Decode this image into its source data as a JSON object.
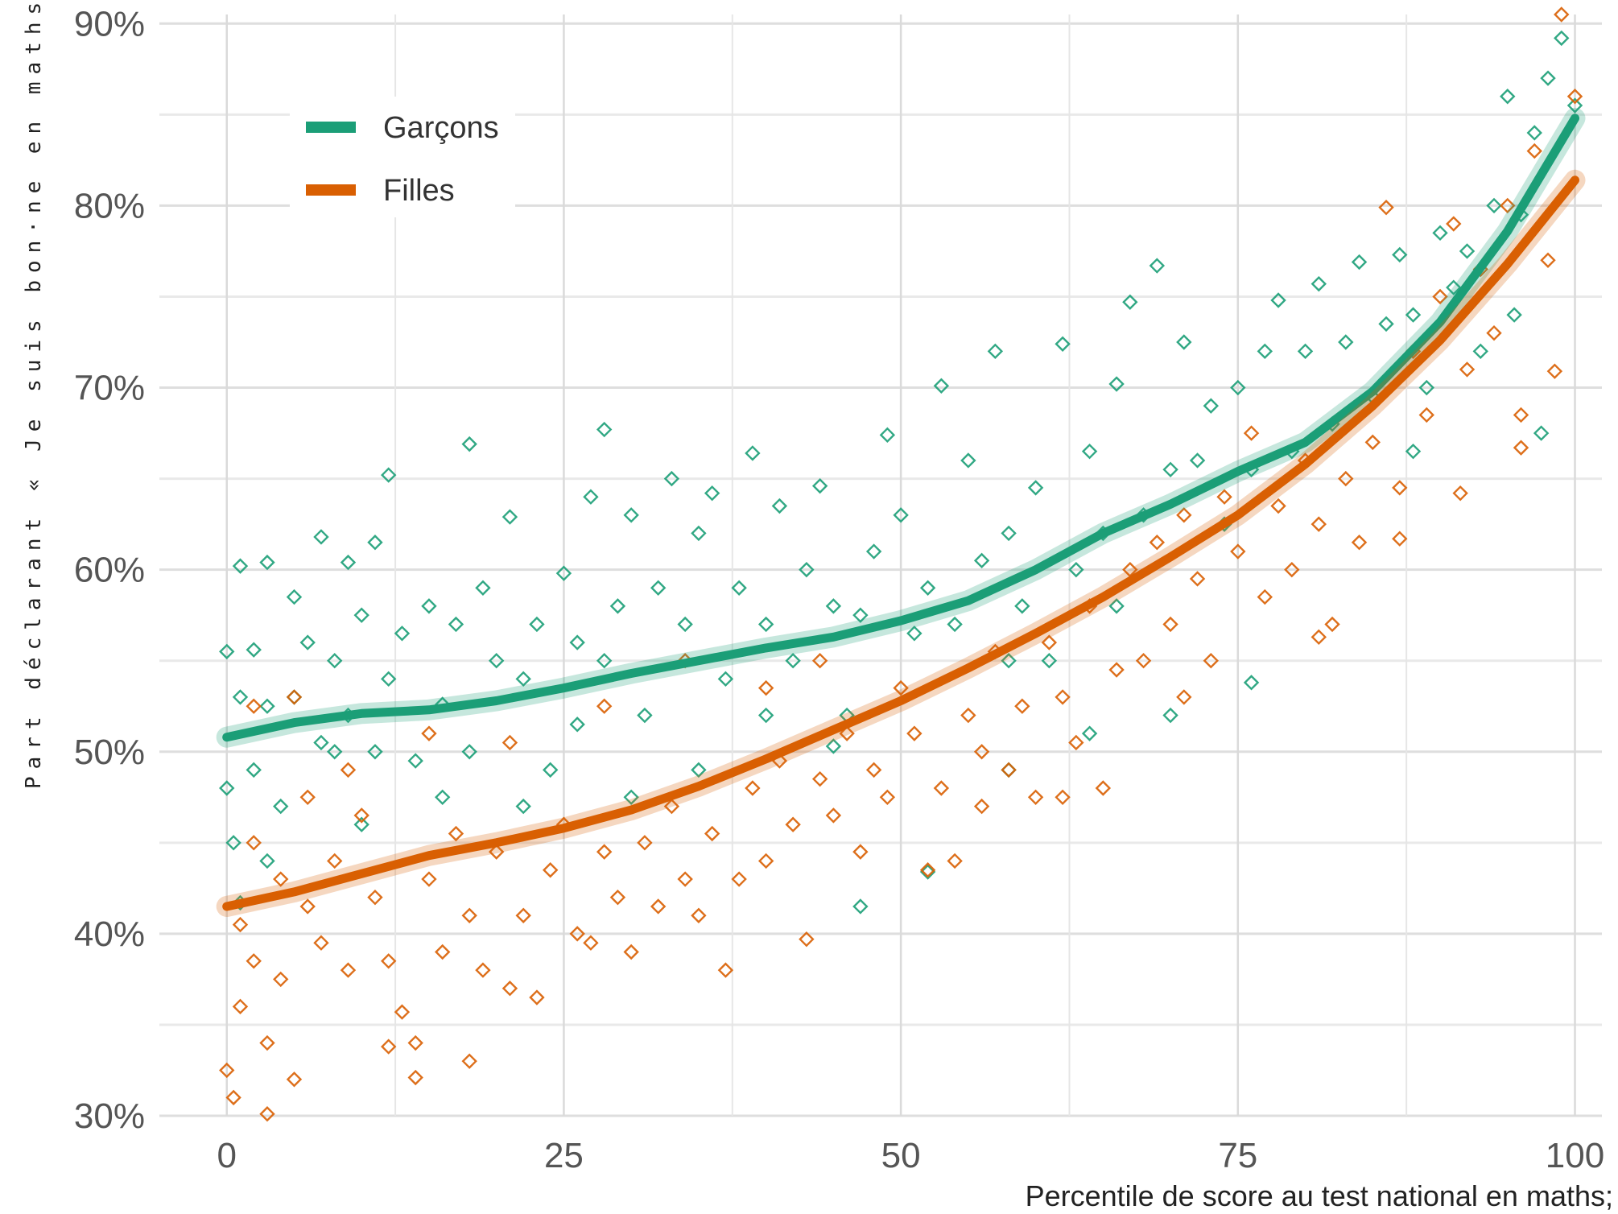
{
  "chart_data": {
    "type": "scatter",
    "title": "",
    "xlabel": "Percentile de score au test national en maths;",
    "ylabel": "Part déclarant « Je suis bon·ne en maths»",
    "xlim": [
      -5,
      102
    ],
    "ylim": [
      30,
      90.5
    ],
    "x_ticks": [
      0,
      25,
      50,
      75,
      100
    ],
    "x_tick_labels": [
      "0",
      "25",
      "50",
      "75",
      "100"
    ],
    "y_ticks": [
      30,
      40,
      50,
      60,
      70,
      80,
      90
    ],
    "y_tick_labels": [
      "30%",
      "40%",
      "50%",
      "60%",
      "70%",
      "80%",
      "90%"
    ],
    "grid": true,
    "legend_position": "top-left",
    "series": [
      {
        "name": "Garçons",
        "color": "#1b9e77",
        "trend": [
          [
            0,
            50.8
          ],
          [
            5,
            51.6
          ],
          [
            10,
            52.1
          ],
          [
            15,
            52.3
          ],
          [
            20,
            52.8
          ],
          [
            25,
            53.5
          ],
          [
            30,
            54.3
          ],
          [
            35,
            55.0
          ],
          [
            40,
            55.7
          ],
          [
            45,
            56.3
          ],
          [
            50,
            57.2
          ],
          [
            55,
            58.3
          ],
          [
            60,
            60.0
          ],
          [
            65,
            62.0
          ],
          [
            70,
            63.6
          ],
          [
            75,
            65.4
          ],
          [
            80,
            67.0
          ],
          [
            85,
            69.8
          ],
          [
            90,
            73.6
          ],
          [
            95,
            78.6
          ],
          [
            100,
            84.8
          ]
        ],
        "points": [
          [
            0,
            48
          ],
          [
            0,
            55.5
          ],
          [
            0.5,
            45
          ],
          [
            1,
            60.2
          ],
          [
            1,
            53
          ],
          [
            2,
            55.6
          ],
          [
            2,
            49
          ],
          [
            3,
            60.4
          ],
          [
            3,
            52.5
          ],
          [
            4,
            47
          ],
          [
            5,
            58.5
          ],
          [
            5,
            53
          ],
          [
            6,
            56
          ],
          [
            7,
            61.8
          ],
          [
            7,
            50.5
          ],
          [
            8,
            55
          ],
          [
            9,
            60.4
          ],
          [
            9,
            52
          ],
          [
            10,
            57.5
          ],
          [
            11,
            61.5
          ],
          [
            11,
            50
          ],
          [
            12,
            65.2
          ],
          [
            12,
            54
          ],
          [
            13,
            56.5
          ],
          [
            14,
            49.5
          ],
          [
            15,
            58
          ],
          [
            16,
            52.6
          ],
          [
            17,
            57
          ],
          [
            18,
            66.9
          ],
          [
            18,
            50
          ],
          [
            19,
            59
          ],
          [
            20,
            55
          ],
          [
            21,
            62.9
          ],
          [
            22,
            54
          ],
          [
            23,
            57
          ],
          [
            24,
            49
          ],
          [
            25,
            59.8
          ],
          [
            26,
            56
          ],
          [
            27,
            64
          ],
          [
            28,
            67.7
          ],
          [
            28,
            55
          ],
          [
            29,
            58
          ],
          [
            30,
            63
          ],
          [
            31,
            52
          ],
          [
            32,
            59
          ],
          [
            33,
            65
          ],
          [
            34,
            57
          ],
          [
            35,
            62
          ],
          [
            36,
            64.2
          ],
          [
            37,
            54
          ],
          [
            38,
            59
          ],
          [
            39,
            66.4
          ],
          [
            40,
            57
          ],
          [
            41,
            63.5
          ],
          [
            42,
            55
          ],
          [
            43,
            60
          ],
          [
            44,
            64.6
          ],
          [
            45,
            58
          ],
          [
            46,
            52
          ],
          [
            47,
            57.5
          ],
          [
            48,
            61
          ],
          [
            49,
            67.4
          ],
          [
            50,
            63
          ],
          [
            51,
            56.5
          ],
          [
            52,
            59
          ],
          [
            53,
            70.1
          ],
          [
            54,
            57
          ],
          [
            55,
            66
          ],
          [
            56,
            60.5
          ],
          [
            57,
            72
          ],
          [
            58,
            62
          ],
          [
            59,
            58
          ],
          [
            60,
            64.5
          ],
          [
            61,
            55
          ],
          [
            62,
            72.4
          ],
          [
            63,
            60
          ],
          [
            64,
            66.5
          ],
          [
            65,
            62
          ],
          [
            66,
            70.2
          ],
          [
            67,
            74.7
          ],
          [
            68,
            63
          ],
          [
            69,
            76.7
          ],
          [
            70,
            65.5
          ],
          [
            71,
            72.5
          ],
          [
            72,
            66
          ],
          [
            73,
            69
          ],
          [
            74,
            62.5
          ],
          [
            75,
            70
          ],
          [
            76,
            65.5
          ],
          [
            77,
            72
          ],
          [
            78,
            74.8
          ],
          [
            79,
            66.5
          ],
          [
            80,
            72
          ],
          [
            81,
            75.7
          ],
          [
            82,
            68
          ],
          [
            83,
            72.5
          ],
          [
            84,
            76.9
          ],
          [
            85,
            69.5
          ],
          [
            86,
            73.5
          ],
          [
            87,
            77.3
          ],
          [
            88,
            74
          ],
          [
            89,
            70
          ],
          [
            90,
            78.5
          ],
          [
            91,
            75.5
          ],
          [
            92,
            77.5
          ],
          [
            93,
            72
          ],
          [
            94,
            80
          ],
          [
            95,
            86
          ],
          [
            96,
            79.5
          ],
          [
            97,
            84
          ],
          [
            98,
            87
          ],
          [
            99,
            89.2
          ],
          [
            100,
            85.5
          ],
          [
            95.5,
            74
          ],
          [
            97.5,
            67.5
          ],
          [
            88,
            66.5
          ],
          [
            76,
            53.8
          ],
          [
            52,
            43.4
          ],
          [
            47,
            41.5
          ],
          [
            30,
            47.5
          ],
          [
            22,
            47
          ],
          [
            10,
            46
          ],
          [
            3,
            44
          ],
          [
            1,
            41.7
          ],
          [
            58,
            49
          ],
          [
            64,
            51
          ],
          [
            70,
            52
          ],
          [
            66,
            58
          ],
          [
            58,
            55
          ],
          [
            45,
            50.3
          ],
          [
            40,
            52
          ],
          [
            35,
            49
          ],
          [
            26,
            51.5
          ],
          [
            16,
            47.5
          ],
          [
            8,
            50
          ]
        ]
      },
      {
        "name": "Filles",
        "color": "#d95f02",
        "trend": [
          [
            0,
            41.5
          ],
          [
            5,
            42.3
          ],
          [
            10,
            43.3
          ],
          [
            15,
            44.3
          ],
          [
            20,
            45.0
          ],
          [
            25,
            45.8
          ],
          [
            30,
            46.8
          ],
          [
            35,
            48.1
          ],
          [
            40,
            49.6
          ],
          [
            45,
            51.2
          ],
          [
            50,
            52.8
          ],
          [
            55,
            54.6
          ],
          [
            60,
            56.5
          ],
          [
            65,
            58.5
          ],
          [
            70,
            60.7
          ],
          [
            75,
            63.0
          ],
          [
            80,
            65.8
          ],
          [
            85,
            69.0
          ],
          [
            90,
            72.6
          ],
          [
            95,
            76.8
          ],
          [
            100,
            81.4
          ]
        ],
        "points": [
          [
            0,
            32.5
          ],
          [
            0.5,
            31
          ],
          [
            1,
            36
          ],
          [
            1,
            40.5
          ],
          [
            2,
            38.5
          ],
          [
            2,
            45
          ],
          [
            3,
            34
          ],
          [
            3,
            30.1
          ],
          [
            4,
            37.5
          ],
          [
            4,
            43
          ],
          [
            5,
            32
          ],
          [
            6,
            41.5
          ],
          [
            6,
            47.5
          ],
          [
            7,
            39.5
          ],
          [
            8,
            44
          ],
          [
            9,
            38
          ],
          [
            10,
            46.5
          ],
          [
            11,
            42
          ],
          [
            12,
            33.8
          ],
          [
            12,
            38.5
          ],
          [
            13,
            35.7
          ],
          [
            14,
            32.1
          ],
          [
            14,
            34
          ],
          [
            15,
            43
          ],
          [
            16,
            39
          ],
          [
            17,
            45.5
          ],
          [
            18,
            33
          ],
          [
            18,
            41
          ],
          [
            19,
            38
          ],
          [
            20,
            44.5
          ],
          [
            21,
            37
          ],
          [
            22,
            41
          ],
          [
            23,
            36.5
          ],
          [
            24,
            43.5
          ],
          [
            25,
            46
          ],
          [
            26,
            40
          ],
          [
            27,
            39.5
          ],
          [
            28,
            44.5
          ],
          [
            29,
            42
          ],
          [
            30,
            39
          ],
          [
            31,
            45
          ],
          [
            32,
            41.5
          ],
          [
            33,
            47
          ],
          [
            34,
            43
          ],
          [
            35,
            41
          ],
          [
            36,
            45.5
          ],
          [
            37,
            38
          ],
          [
            38,
            43
          ],
          [
            39,
            48
          ],
          [
            40,
            44
          ],
          [
            41,
            49.5
          ],
          [
            42,
            46
          ],
          [
            43,
            39.7
          ],
          [
            44,
            48.5
          ],
          [
            45,
            46.5
          ],
          [
            46,
            51
          ],
          [
            47,
            44.5
          ],
          [
            48,
            49
          ],
          [
            49,
            47.5
          ],
          [
            50,
            53.5
          ],
          [
            51,
            51
          ],
          [
            52,
            43.5
          ],
          [
            53,
            48
          ],
          [
            54,
            44
          ],
          [
            55,
            52
          ],
          [
            56,
            50
          ],
          [
            57,
            55.5
          ],
          [
            58,
            49
          ],
          [
            59,
            52.5
          ],
          [
            60,
            47.5
          ],
          [
            61,
            56
          ],
          [
            62,
            53
          ],
          [
            63,
            50.5
          ],
          [
            64,
            58
          ],
          [
            65,
            48
          ],
          [
            66,
            54.5
          ],
          [
            67,
            60
          ],
          [
            68,
            55
          ],
          [
            69,
            61.5
          ],
          [
            70,
            57
          ],
          [
            71,
            63
          ],
          [
            72,
            59.5
          ],
          [
            73,
            55
          ],
          [
            74,
            64
          ],
          [
            75,
            61
          ],
          [
            76,
            67.5
          ],
          [
            77,
            58.5
          ],
          [
            78,
            63.5
          ],
          [
            79,
            60
          ],
          [
            80,
            66
          ],
          [
            81,
            62.5
          ],
          [
            82,
            57
          ],
          [
            83,
            65
          ],
          [
            84,
            61.5
          ],
          [
            85,
            67
          ],
          [
            86,
            79.9
          ],
          [
            87,
            64.5
          ],
          [
            88,
            72
          ],
          [
            89,
            68.5
          ],
          [
            90,
            75
          ],
          [
            91,
            79
          ],
          [
            92,
            71
          ],
          [
            93,
            76.5
          ],
          [
            94,
            73
          ],
          [
            95,
            80
          ],
          [
            96,
            68.5
          ],
          [
            97,
            83
          ],
          [
            98,
            77
          ],
          [
            99,
            90.5
          ],
          [
            100,
            86
          ],
          [
            98.5,
            70.9
          ],
          [
            96,
            66.7
          ],
          [
            91.5,
            64.2
          ],
          [
            87,
            61.7
          ],
          [
            81,
            56.3
          ],
          [
            71,
            53
          ],
          [
            62,
            47.5
          ],
          [
            56,
            47
          ],
          [
            44,
            55
          ],
          [
            40,
            53.5
          ],
          [
            34,
            55
          ],
          [
            28,
            52.5
          ],
          [
            21,
            50.5
          ],
          [
            15,
            51
          ],
          [
            9,
            49
          ],
          [
            5,
            53
          ],
          [
            2,
            52.5
          ]
        ]
      }
    ]
  }
}
